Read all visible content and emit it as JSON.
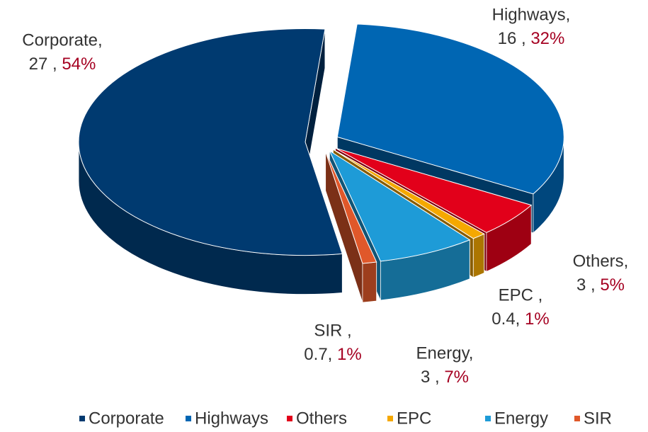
{
  "chart_data": {
    "type": "pie3d",
    "categories": [
      "Corporate",
      "Highways",
      "Others",
      "EPC",
      "Energy",
      "SIR"
    ],
    "values": [
      54,
      32,
      5,
      1,
      7,
      1
    ],
    "value_labels": [
      "54%",
      "32%",
      "5%",
      "1%",
      "7%",
      "1%"
    ],
    "label_names": [
      "Corporate,",
      "Highways,",
      "Others,",
      "EPC ,",
      "Energy,",
      "SIR ,"
    ],
    "amount_labels": [
      "27 ,",
      "16 ,",
      "3 ,",
      "0.4,",
      "3 ,",
      "0.7,"
    ],
    "colors": [
      "#003a70",
      "#0066b3",
      "#e2001a",
      "#f5a800",
      "#1e9bd7",
      "#e0582a"
    ],
    "percent_color": "#a50021",
    "legend": "bottom"
  }
}
